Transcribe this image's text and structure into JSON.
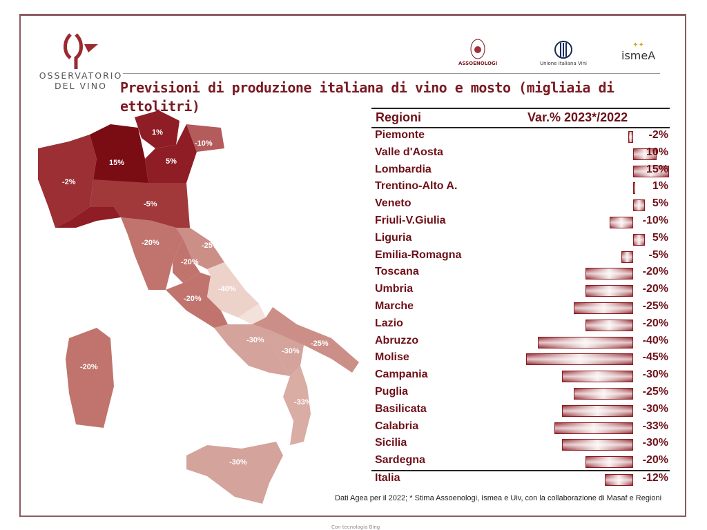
{
  "header": {
    "brand_line1": "OSSERVATORIO",
    "brand_line2": "DEL VINO",
    "partner_logos": [
      "ASSOENOLOGI",
      "Unione Italiana Vini",
      "ismeA"
    ]
  },
  "chart_data": {
    "type": "bar",
    "title": "Previsioni di produzione italiana di vino e mosto (migliaia di ettolitri)",
    "column_headers": [
      "Regioni",
      "Var.% 2023*/2022"
    ],
    "categories": [
      "Piemonte",
      "Valle d'Aosta",
      "Lombardia",
      "Trentino-Alto A.",
      "Veneto",
      "Friuli-V.Giulia",
      "Liguria",
      "Emilia-Romagna",
      "Toscana",
      "Umbria",
      "Marche",
      "Lazio",
      "Abruzzo",
      "Molise",
      "Campania",
      "Puglia",
      "Basilicata",
      "Calabria",
      "Sicilia",
      "Sardegna",
      "Italia"
    ],
    "values": [
      -2,
      10,
      15,
      1,
      5,
      -10,
      5,
      -5,
      -20,
      -20,
      -25,
      -20,
      -40,
      -45,
      -30,
      -25,
      -30,
      -33,
      -30,
      -20,
      -12
    ],
    "labels": [
      "-2%",
      "10%",
      "15%",
      "1%",
      "5%",
      "-10%",
      "5%",
      "-5%",
      "-20%",
      "-20%",
      "-25%",
      "-20%",
      "-40%",
      "-45%",
      "-30%",
      "-25%",
      "-30%",
      "-33%",
      "-30%",
      "-20%",
      "-12%"
    ],
    "unit": "%",
    "note": "Dati Agea per il 2022; * Stima Assoenologi, Ismea e Uiv, con la collaborazione di Masaf e Regioni"
  },
  "map": {
    "labels": [
      "1%",
      "-10%",
      "15%",
      "5%",
      "-2%",
      "-5%",
      "-20%",
      "-25%",
      "-20%",
      "-40%",
      "-20%",
      "-30%",
      "-25%",
      "-30%",
      "-20%",
      "-33%",
      "-30%"
    ]
  },
  "colors": {
    "accent": "#7a1a22"
  },
  "footer": "Con tecnologia Bing"
}
